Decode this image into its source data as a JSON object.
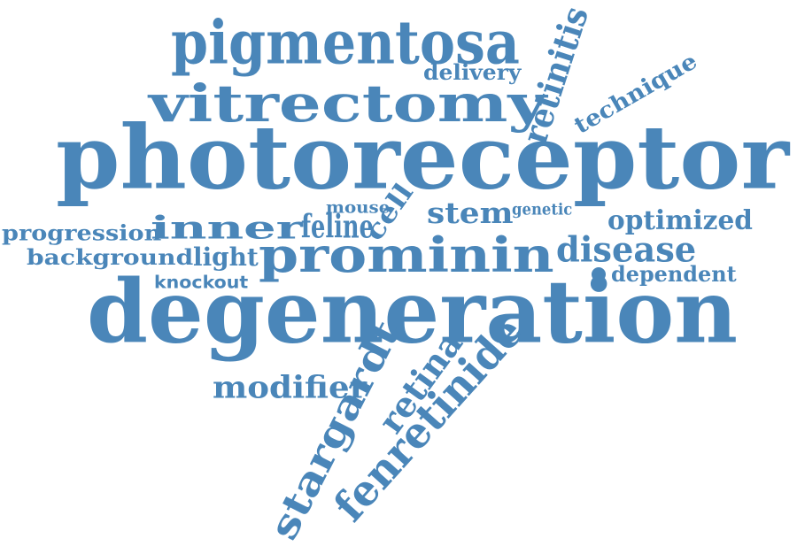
{
  "style": {
    "word_color": "#4a86b9",
    "background": "#ffffff"
  },
  "words": [
    {
      "text": "photoreceptor"
    },
    {
      "text": "degeneration"
    },
    {
      "text": "vitrectomy"
    },
    {
      "text": "pigmentosa"
    },
    {
      "text": "prominin"
    },
    {
      "text": "fenretinide"
    },
    {
      "text": "stargardt"
    },
    {
      "text": "retinitis"
    },
    {
      "text": "retina"
    },
    {
      "text": "disease"
    },
    {
      "text": "modifier"
    },
    {
      "text": "feline"
    },
    {
      "text": "inner"
    },
    {
      "text": "stem"
    },
    {
      "text": "cell"
    },
    {
      "text": "optimized"
    },
    {
      "text": "progression"
    },
    {
      "text": "background"
    },
    {
      "text": "light"
    },
    {
      "text": "technique"
    },
    {
      "text": "delivery"
    },
    {
      "text": "dependent"
    },
    {
      "text": "knockout"
    },
    {
      "text": "mouse"
    },
    {
      "text": "genetic"
    }
  ]
}
